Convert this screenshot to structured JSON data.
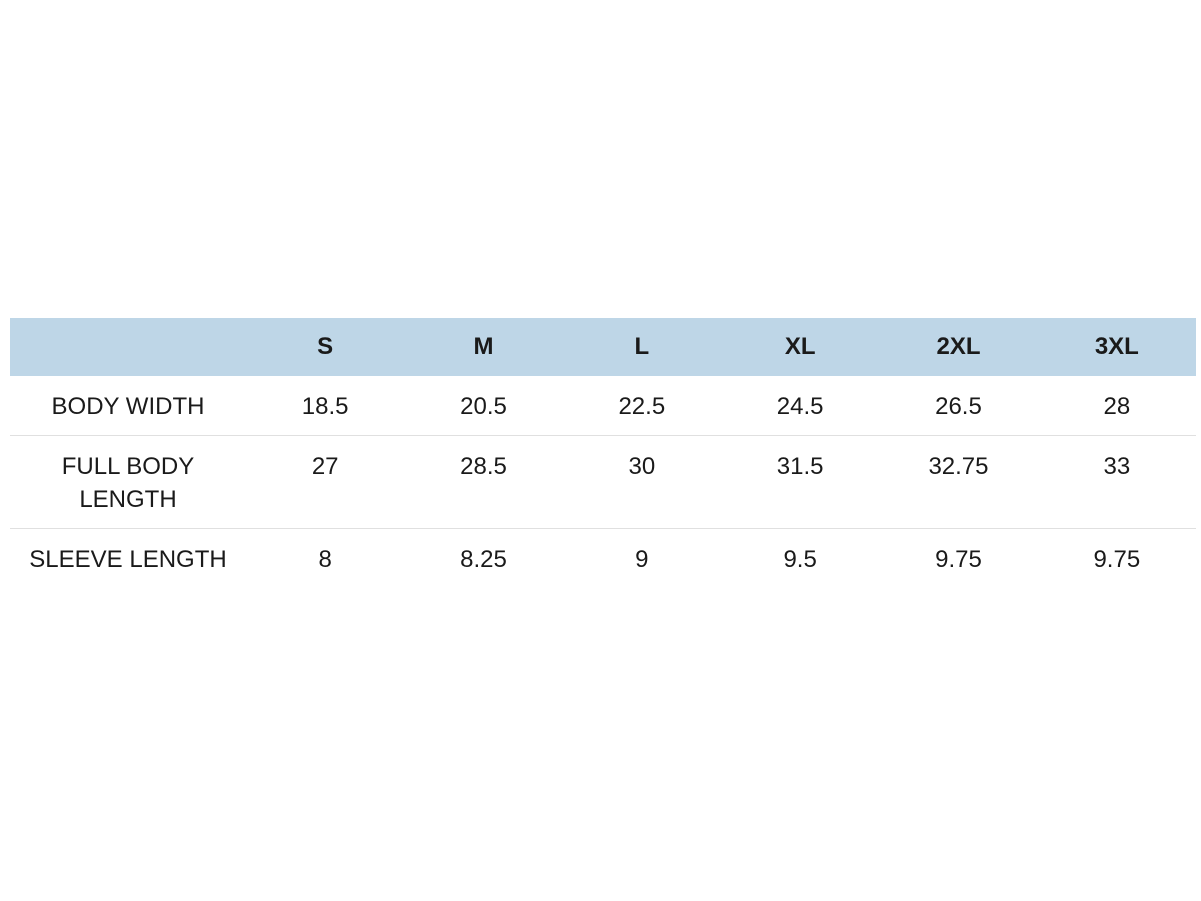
{
  "table": {
    "columns": [
      "S",
      "M",
      "L",
      "XL",
      "2XL",
      "3XL"
    ],
    "rows": [
      {
        "label": "BODY WIDTH",
        "values": [
          18.5,
          20.5,
          22.5,
          24.5,
          26.5,
          28
        ]
      },
      {
        "label": "FULL BODY LENGTH",
        "values": [
          27,
          28.5,
          30,
          31.5,
          32.75,
          33
        ]
      },
      {
        "label": "SLEEVE LENGTH",
        "values": [
          8,
          8.25,
          9,
          9.5,
          9.75,
          9.75
        ]
      }
    ]
  }
}
